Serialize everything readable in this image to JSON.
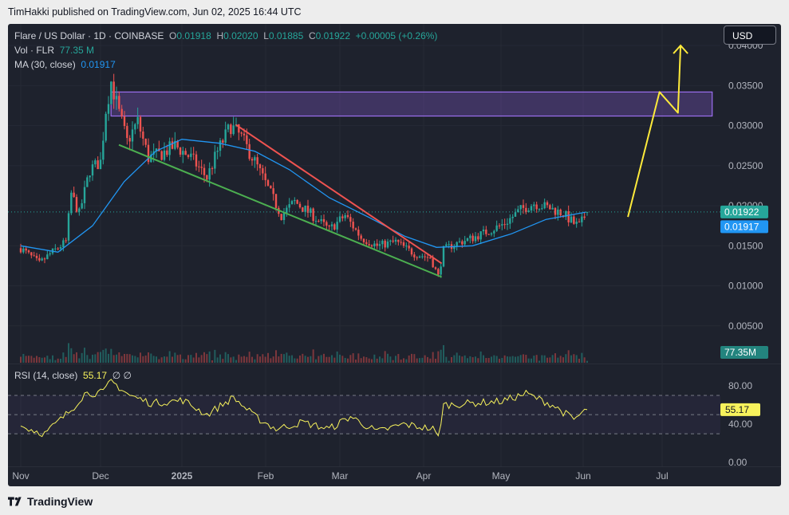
{
  "header": {
    "published": "TimHakki published on TradingView.com, Jun 02, 2025 16:44 UTC"
  },
  "legend": {
    "symbol": "Flare / US Dollar · 1D · COINBASE",
    "o_label": "O",
    "o": "0.01918",
    "h_label": "H",
    "h": "0.02020",
    "l_label": "L",
    "l": "0.01885",
    "c_label": "C",
    "c": "0.01922",
    "change": "+0.00005 (+0.26%)",
    "vol_label": "Vol · FLR",
    "vol": "77.35 M",
    "ma_label": "MA (30, close)",
    "ma": "0.01917"
  },
  "currency_button": "USD",
  "rsi_legend": {
    "label": "RSI (14, close)",
    "value": "55.17",
    "extra": "∅  ∅"
  },
  "footer": {
    "brand": "TradingView"
  },
  "colors": {
    "up": "#26a69a",
    "down": "#ef5350",
    "ma": "#2196f3",
    "rsi": "#f7f25c",
    "support": "#4caf50",
    "resistance": "#ef5350",
    "zone": "#7e57c2",
    "arrow": "#ffeb3b"
  },
  "chart_data": {
    "type": "candlestick",
    "x_tick_labels": [
      "Nov",
      "Dec",
      "2025",
      "Feb",
      "Mar",
      "Apr",
      "May",
      "Jun",
      "Jul"
    ],
    "x_ticks_dates": [
      "2024-11-01",
      "2024-12-01",
      "2025-01-01",
      "2025-02-01",
      "2025-03-01",
      "2025-04-01",
      "2025-05-01",
      "2025-06-01",
      "2025-07-01"
    ],
    "y_ticks": [
      "0.04000",
      "0.03500",
      "0.03000",
      "0.02500",
      "0.02000",
      "0.01500",
      "0.01000",
      "0.00500"
    ],
    "price_range": [
      0.0004,
      0.0427
    ],
    "last_price_label": "0.01922",
    "ma_label": "0.01917",
    "volume_label": "77.35M",
    "close_path": [
      [
        "2024-11-01",
        0.0147
      ],
      [
        "2024-11-08",
        0.0128
      ],
      [
        "2024-11-12",
        0.014
      ],
      [
        "2024-11-18",
        0.0155
      ],
      [
        "2024-11-20",
        0.0215
      ],
      [
        "2024-11-23",
        0.019
      ],
      [
        "2024-11-27",
        0.0245
      ],
      [
        "2024-12-01",
        0.0255
      ],
      [
        "2024-12-03",
        0.032
      ],
      [
        "2024-12-05",
        0.0355
      ],
      [
        "2024-12-08",
        0.0315
      ],
      [
        "2024-12-11",
        0.028
      ],
      [
        "2024-12-15",
        0.0305
      ],
      [
        "2024-12-19",
        0.026
      ],
      [
        "2024-12-24",
        0.0265
      ],
      [
        "2024-12-29",
        0.0275
      ],
      [
        "2025-01-04",
        0.026
      ],
      [
        "2025-01-10",
        0.0235
      ],
      [
        "2025-01-14",
        0.0268
      ],
      [
        "2025-01-19",
        0.03
      ],
      [
        "2025-01-23",
        0.0285
      ],
      [
        "2025-01-28",
        0.0255
      ],
      [
        "2025-02-03",
        0.0215
      ],
      [
        "2025-02-07",
        0.0188
      ],
      [
        "2025-02-12",
        0.0205
      ],
      [
        "2025-02-18",
        0.019
      ],
      [
        "2025-02-25",
        0.017
      ],
      [
        "2025-03-03",
        0.0188
      ],
      [
        "2025-03-09",
        0.016
      ],
      [
        "2025-03-15",
        0.015
      ],
      [
        "2025-03-22",
        0.0155
      ],
      [
        "2025-03-29",
        0.014
      ],
      [
        "2025-04-04",
        0.0135
      ],
      [
        "2025-04-07",
        0.0112
      ],
      [
        "2025-04-09",
        0.0145
      ],
      [
        "2025-04-13",
        0.0152
      ],
      [
        "2025-04-20",
        0.016
      ],
      [
        "2025-04-27",
        0.017
      ],
      [
        "2025-05-02",
        0.0178
      ],
      [
        "2025-05-08",
        0.0195
      ],
      [
        "2025-05-13",
        0.0203
      ],
      [
        "2025-05-19",
        0.0197
      ],
      [
        "2025-05-24",
        0.019
      ],
      [
        "2025-05-28",
        0.0178
      ],
      [
        "2025-05-30",
        0.0175
      ],
      [
        "2025-06-02",
        0.0192
      ]
    ],
    "ma30_path": [
      [
        "2024-11-01",
        0.015
      ],
      [
        "2024-11-15",
        0.0142
      ],
      [
        "2024-11-28",
        0.0175
      ],
      [
        "2024-12-10",
        0.023
      ],
      [
        "2024-12-22",
        0.0268
      ],
      [
        "2025-01-01",
        0.0283
      ],
      [
        "2025-01-15",
        0.0278
      ],
      [
        "2025-01-28",
        0.0268
      ],
      [
        "2025-02-10",
        0.0245
      ],
      [
        "2025-02-25",
        0.021
      ],
      [
        "2025-03-12",
        0.0185
      ],
      [
        "2025-03-25",
        0.0162
      ],
      [
        "2025-04-06",
        0.0148
      ],
      [
        "2025-04-20",
        0.015
      ],
      [
        "2025-05-05",
        0.0165
      ],
      [
        "2025-05-18",
        0.0183
      ],
      [
        "2025-06-02",
        0.0192
      ]
    ],
    "annotations": {
      "resistance_zone": {
        "from": "2024-12-05",
        "to": "2025-07-20",
        "low": 0.0312,
        "high": 0.0342
      },
      "support_line": [
        [
          "2024-12-08",
          0.0276
        ],
        [
          "2025-04-08",
          0.0111
        ]
      ],
      "resistance_line": [
        [
          "2025-01-21",
          0.0301
        ],
        [
          "2025-04-08",
          0.0128
        ]
      ],
      "projection": [
        [
          "2025-06-18",
          0.0186
        ],
        [
          "2025-06-30",
          0.0342
        ],
        [
          "2025-07-07",
          0.0316
        ],
        [
          "2025-07-08",
          0.04
        ]
      ]
    },
    "rsi": {
      "label": "RSI (14, close)",
      "value": 55.17,
      "levels": [
        70,
        50,
        30
      ],
      "y_ticks": [
        "80.00",
        "40.00",
        "0.00"
      ],
      "range": [
        -4,
        100
      ],
      "path": [
        [
          "2024-11-01",
          38
        ],
        [
          "2024-11-10",
          30
        ],
        [
          "2024-11-20",
          55
        ],
        [
          "2024-11-25",
          72
        ],
        [
          "2024-12-02",
          73
        ],
        [
          "2024-12-05",
          85
        ],
        [
          "2024-12-12",
          70
        ],
        [
          "2024-12-20",
          62
        ],
        [
          "2025-01-01",
          65
        ],
        [
          "2025-01-10",
          50
        ],
        [
          "2025-01-20",
          68
        ],
        [
          "2025-01-28",
          48
        ],
        [
          "2025-02-05",
          35
        ],
        [
          "2025-02-15",
          42
        ],
        [
          "2025-02-25",
          35
        ],
        [
          "2025-03-05",
          48
        ],
        [
          "2025-03-15",
          32
        ],
        [
          "2025-03-25",
          40
        ],
        [
          "2025-04-05",
          35
        ],
        [
          "2025-04-07",
          26
        ],
        [
          "2025-04-09",
          60
        ],
        [
          "2025-04-20",
          62
        ],
        [
          "2025-05-01",
          64
        ],
        [
          "2025-05-10",
          72
        ],
        [
          "2025-05-20",
          60
        ],
        [
          "2025-05-28",
          45
        ],
        [
          "2025-06-02",
          55
        ]
      ]
    }
  }
}
